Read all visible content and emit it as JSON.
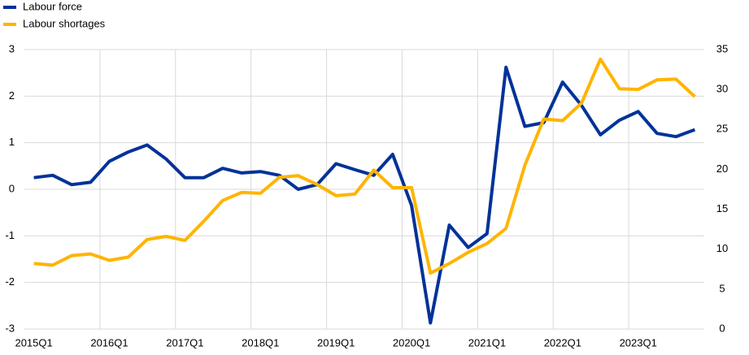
{
  "chart_data": {
    "type": "line",
    "categories": [
      "2015Q1",
      null,
      null,
      null,
      "2016Q1",
      null,
      null,
      null,
      "2017Q1",
      null,
      null,
      null,
      "2018Q1",
      null,
      null,
      null,
      "2019Q1",
      null,
      null,
      null,
      "2020Q1",
      null,
      null,
      null,
      "2021Q1",
      null,
      null,
      null,
      "2022Q1",
      null,
      null,
      null,
      "2023Q1",
      null,
      null,
      null
    ],
    "series": [
      {
        "name": "Labour force",
        "color": "#003299",
        "axis": "y",
        "values": [
          0.25,
          0.3,
          0.1,
          0.15,
          0.6,
          0.8,
          0.95,
          0.65,
          0.25,
          0.25,
          0.45,
          0.35,
          0.38,
          0.3,
          0.0,
          0.1,
          0.55,
          0.42,
          0.3,
          0.75,
          -0.35,
          -2.87,
          -0.77,
          -1.25,
          -0.95,
          2.62,
          1.35,
          1.43,
          2.3,
          1.8,
          1.17,
          1.48,
          1.67,
          1.2,
          1.13,
          1.28
        ]
      },
      {
        "name": "Labour shortages",
        "color": "#ffb400",
        "axis": "y2",
        "values": [
          8.2,
          8.0,
          9.2,
          9.4,
          8.6,
          9.0,
          11.2,
          11.6,
          11.1,
          13.5,
          16.1,
          17.1,
          17.0,
          19.0,
          19.2,
          18.1,
          16.7,
          16.9,
          19.9,
          17.7,
          17.7,
          7.0,
          8.2,
          9.6,
          10.7,
          12.6,
          20.5,
          26.3,
          26.1,
          28.3,
          33.8,
          30.1,
          30.0,
          31.2,
          31.3,
          29.1
        ]
      }
    ],
    "ylim": [
      -3,
      3
    ],
    "yticks": [
      -3,
      -2,
      -1,
      0,
      1,
      2,
      3
    ],
    "y2lim": [
      0,
      35
    ],
    "y2ticks": [
      0,
      5,
      10,
      15,
      20,
      25,
      30,
      35
    ],
    "grid": true,
    "legend": "top-left"
  }
}
